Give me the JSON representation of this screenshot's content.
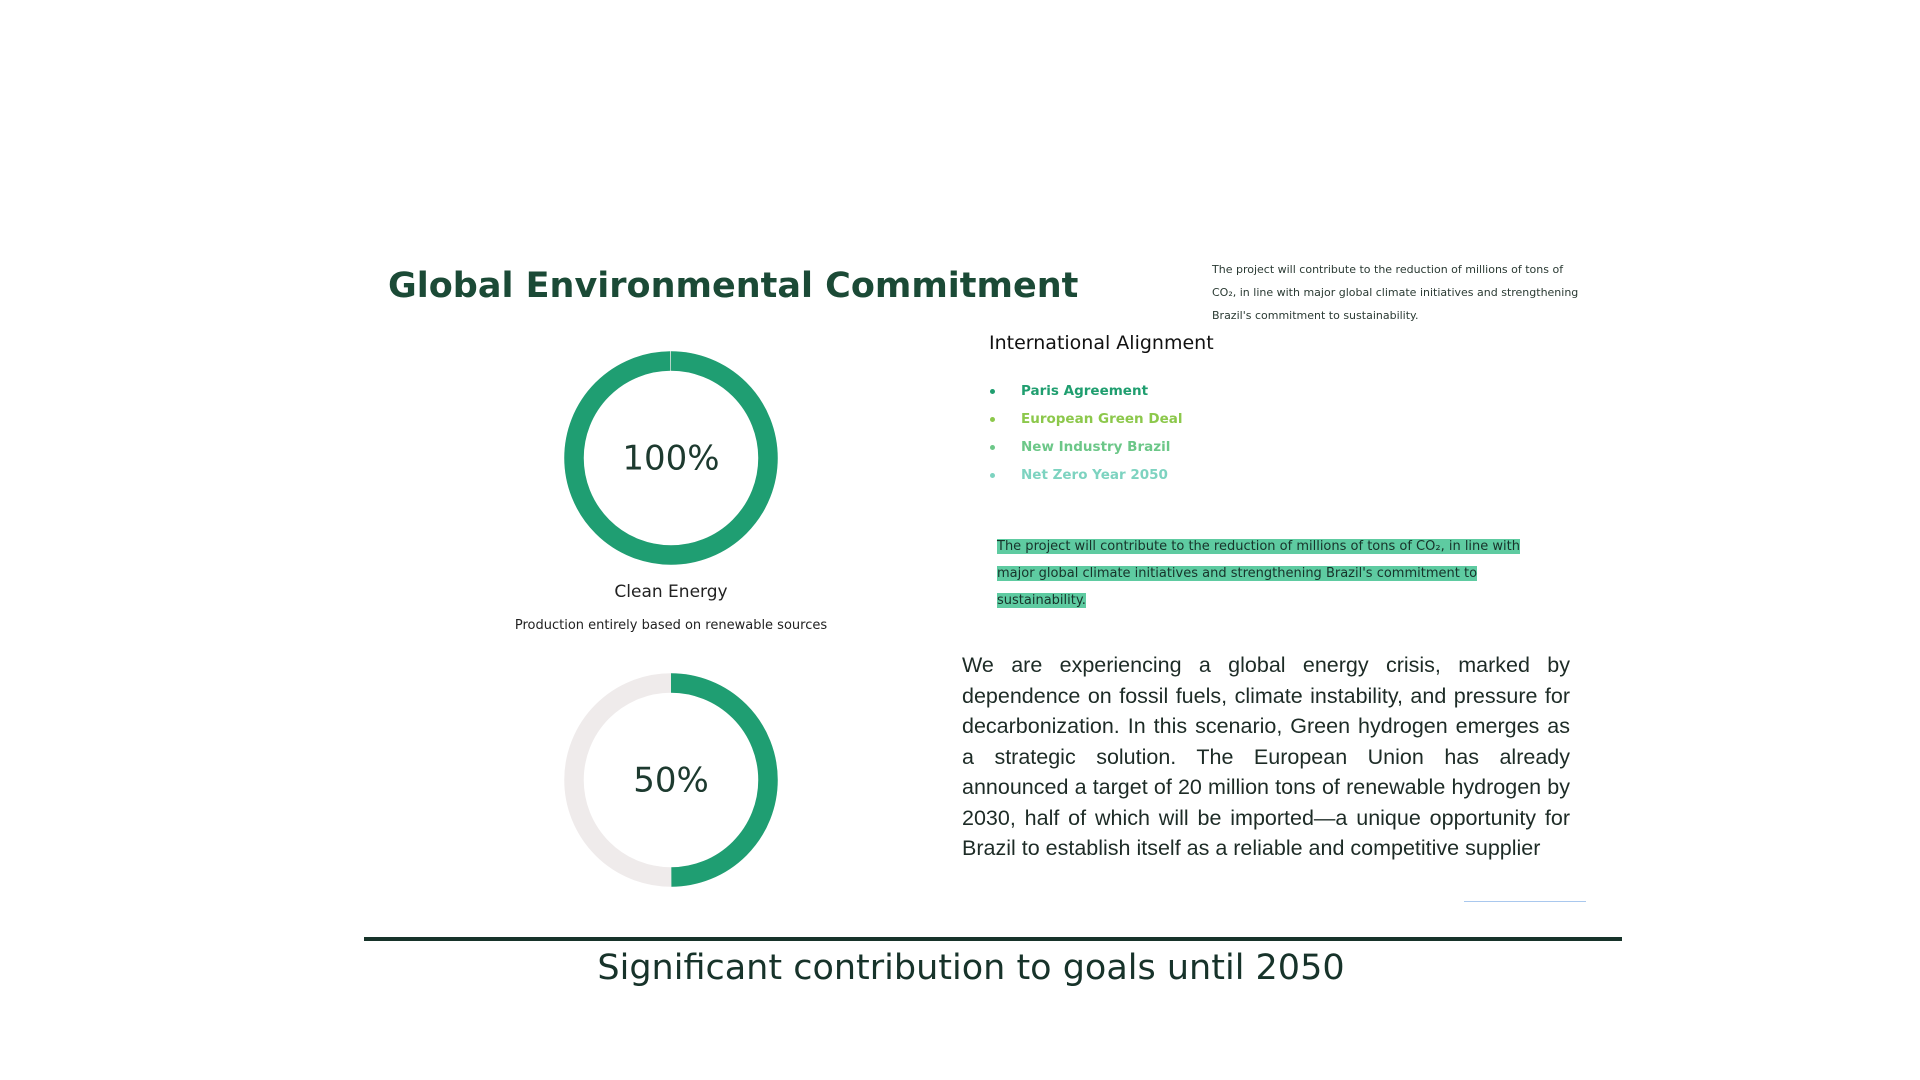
{
  "header": {
    "title": "Global Environmental Commitment"
  },
  "intro_note": "The project will contribute to the reduction of millions of tons of CO₂, in line with major global climate initiatives and strengthening Brazil's commitment to sustainability.",
  "alignment": {
    "heading": "International Alignment",
    "items": [
      {
        "text": "Paris Agreement",
        "color": "#1f9e6f"
      },
      {
        "text": "European Green Deal",
        "color": "#8cc84b"
      },
      {
        "text": "New Industry Brazil",
        "color": "#6cc788"
      },
      {
        "text": "Net Zero Year 2050",
        "color": "#7dd3c0"
      }
    ]
  },
  "highlight": "The project will contribute to the reduction of millions of tons of CO₂, in line with major global climate initiatives and strengthening Brazil's commitment to sustainability.",
  "gauges": [
    {
      "value": 100,
      "label": "100%",
      "caption": "Clean Energy",
      "description": "Production entirely based on renewable sources"
    },
    {
      "value": 50,
      "label": "50%"
    }
  ],
  "body": "We are experiencing a global energy crisis, marked by dependence on fossil fuels, climate instability, and pressure for decarbonization. In this scenario, Green hydrogen emerges as a strategic solution. The European Union has already announced a target of 20 million tons of renewable hydrogen by 2030, half of which will be imported—a unique opportunity for Brazil to establish itself as a reliable and competitive supplier",
  "footer": "Significant contribution to goals until 2050"
}
